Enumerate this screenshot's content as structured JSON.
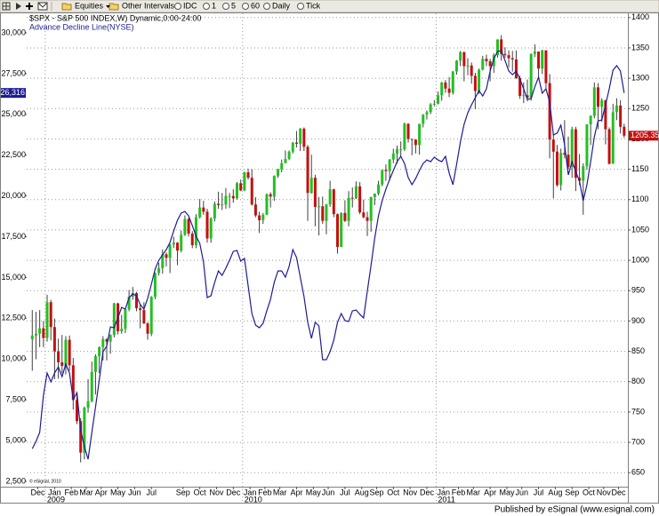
{
  "chart_data": {
    "type": "candlestick",
    "toolbar": {
      "menus": [
        "Equities",
        "Other Intervals"
      ],
      "buttons": [
        "IDC",
        "1",
        "5",
        "60",
        "Daily",
        "Tick"
      ]
    },
    "footer": "Published by eSignal (www.esignal.com)",
    "watermark": "© eSignal, 2010",
    "grid": true,
    "xlim": [
      -1.5,
      160
    ],
    "x": [
      0,
      1,
      2,
      3,
      4,
      5,
      6,
      7,
      8,
      9,
      10,
      11,
      12,
      13,
      14,
      15,
      16,
      17,
      18,
      19,
      20,
      21,
      22,
      23,
      24,
      25,
      26,
      27,
      28,
      29,
      30,
      31,
      32,
      33,
      34,
      35,
      36,
      37,
      38,
      39,
      40,
      41,
      42,
      43,
      44,
      45,
      46,
      47,
      48,
      49,
      50,
      51,
      52,
      53,
      54,
      55,
      56,
      57,
      58,
      59,
      60,
      61,
      62,
      63,
      64,
      65,
      66,
      67,
      68,
      69,
      70,
      71,
      72,
      73,
      74,
      75,
      76,
      77,
      78,
      79,
      80,
      81,
      82,
      83,
      84,
      85,
      86,
      87,
      88,
      89,
      90,
      91,
      92,
      93,
      94,
      95,
      96,
      97,
      98,
      99,
      100,
      101,
      102,
      103,
      104,
      105,
      106,
      107,
      108,
      109,
      110,
      111,
      112,
      113,
      114,
      115,
      116,
      117,
      118,
      119,
      120,
      121,
      122,
      123,
      124,
      125,
      126,
      127,
      128,
      129,
      130,
      131,
      132,
      133,
      134,
      135,
      136,
      137,
      138,
      139,
      140,
      141,
      142,
      143,
      144,
      145,
      146,
      147,
      148,
      149,
      150,
      151,
      152,
      153,
      154,
      155,
      156,
      157,
      158,
      159
    ],
    "xticks": [
      {
        "value": 1.5,
        "label": "Dec"
      },
      {
        "value": 6,
        "label": "Jan"
      },
      {
        "value": 10.5,
        "label": "Feb"
      },
      {
        "value": 14.5,
        "label": "Mar"
      },
      {
        "value": 18.5,
        "label": "Apr"
      },
      {
        "value": 23,
        "label": "May"
      },
      {
        "value": 27.5,
        "label": "Jun"
      },
      {
        "value": 32,
        "label": "Jul"
      },
      {
        "value": 40.5,
        "label": "Sep"
      },
      {
        "value": 45,
        "label": "Oct"
      },
      {
        "value": 49.5,
        "label": "Nov"
      },
      {
        "value": 54,
        "label": "Dec"
      },
      {
        "value": 58.5,
        "label": "Jan"
      },
      {
        "value": 62.5,
        "label": "Feb"
      },
      {
        "value": 66.5,
        "label": "Mar"
      },
      {
        "value": 71,
        "label": "Apr"
      },
      {
        "value": 75.5,
        "label": "May"
      },
      {
        "value": 79.5,
        "label": "Jun"
      },
      {
        "value": 84,
        "label": "Jul"
      },
      {
        "value": 88.5,
        "label": "Aug"
      },
      {
        "value": 92.5,
        "label": "Sep"
      },
      {
        "value": 97,
        "label": "Oct"
      },
      {
        "value": 101.5,
        "label": "Nov"
      },
      {
        "value": 106,
        "label": "Dec"
      },
      {
        "value": 110.5,
        "label": "Jan"
      },
      {
        "value": 114.5,
        "label": "Feb"
      },
      {
        "value": 118.5,
        "label": "Mar"
      },
      {
        "value": 123,
        "label": "Apr"
      },
      {
        "value": 127.5,
        "label": "May"
      },
      {
        "value": 131.5,
        "label": "Jun"
      },
      {
        "value": 136,
        "label": "Jul"
      },
      {
        "value": 140.5,
        "label": "Aug"
      },
      {
        "value": 145,
        "label": "Sep"
      },
      {
        "value": 149.5,
        "label": "Oct"
      },
      {
        "value": 153.5,
        "label": "Nov"
      },
      {
        "value": 157.5,
        "label": "Dec"
      }
    ],
    "year_ticks": [
      {
        "value": 3.5,
        "label": "2009"
      },
      {
        "value": 56.5,
        "label": "2010"
      },
      {
        "value": 108.5,
        "label": "2011"
      }
    ],
    "ylim": [
      2064,
      31198
    ],
    "yticks": [
      {
        "value": 2500,
        "label": "2,500"
      },
      {
        "value": 5000,
        "label": "5,000"
      },
      {
        "value": 7500,
        "label": "7,500"
      },
      {
        "value": 10000,
        "label": "10,000"
      },
      {
        "value": 12500,
        "label": "12,500"
      },
      {
        "value": 15000,
        "label": "15,000"
      },
      {
        "value": 17500,
        "label": "17,500"
      },
      {
        "value": 20000,
        "label": "20,000"
      },
      {
        "value": 22500,
        "label": "22,500"
      },
      {
        "value": 25000,
        "label": "25,000"
      },
      {
        "value": 27500,
        "label": "27,500"
      },
      {
        "value": 30000,
        "label": "30,000"
      }
    ],
    "y2lim": [
      624,
      1407
    ],
    "y2ticks": [
      650,
      700,
      750,
      800,
      850,
      900,
      950,
      1000,
      1050,
      1100,
      1150,
      1200,
      1250,
      1300,
      1350,
      1400
    ],
    "series": [
      {
        "name": "$SPX - S&P 500 INDEX,W) Dynamic,0:00-24:00",
        "type": "candlestick",
        "axis": "y2",
        "up_color": "#22c022",
        "down_color": "#c41010",
        "wick_color": "#404040",
        "current_label": "1205.35",
        "open": [
          870,
          876,
          879,
          888,
          872,
          931,
          890,
          850,
          832,
          826,
          869,
          827,
          770,
          735,
          683,
          757,
          768,
          816,
          842,
          857,
          870,
          866,
          877,
          929,
          883,
          887,
          919,
          940,
          946,
          921,
          918,
          896,
          879,
          940,
          979,
          987,
          1010,
          1004,
          1026,
          1029,
          1016,
          1042,
          1068,
          1044,
          1025,
          1071,
          1087,
          1080,
          1036,
          1069,
          1093,
          1091,
          1092,
          1106,
          1106,
          1102,
          1127,
          1115,
          1145,
          1136,
          1092,
          1074,
          1066,
          1075,
          1109,
          1105,
          1139,
          1150,
          1160,
          1167,
          1179,
          1194,
          1192,
          1217,
          1187,
          1111,
          1136,
          1088,
          1089,
          1065,
          1092,
          1117,
          1076,
          1022,
          1078,
          1065,
          1103,
          1102,
          1122,
          1079,
          1071,
          1065,
          1104,
          1110,
          1125,
          1149,
          1147,
          1166,
          1176,
          1183,
          1183,
          1225,
          1200,
          1199,
          1190,
          1225,
          1240,
          1244,
          1257,
          1258,
          1272,
          1293,
          1283,
          1276,
          1311,
          1329,
          1343,
          1320,
          1321,
          1304,
          1279,
          1314,
          1332,
          1328,
          1320,
          1338,
          1364,
          1340,
          1338,
          1333,
          1331,
          1300,
          1271,
          1272,
          1268,
          1340,
          1344,
          1316,
          1346,
          1292,
          1199,
          1179,
          1124,
          1177,
          1174,
          1154,
          1216,
          1136,
          1131,
          1155,
          1224,
          1238,
          1285,
          1253,
          1264,
          1216,
          1159,
          1244,
          1255,
          1220
        ],
        "high": [
          918,
          915,
          918,
          900,
          943,
          935,
          904,
          871,
          877,
          875,
          876,
          839,
          780,
          740,
          759,
          804,
          833,
          845,
          858,
          875,
          872,
          878,
          930,
          930,
          910,
          920,
          951,
          956,
          948,
          928,
          931,
          898,
          941,
          980,
          996,
          1018,
          1013,
          1027,
          1039,
          1030,
          1049,
          1074,
          1070,
          1048,
          1076,
          1101,
          1098,
          1085,
          1071,
          1097,
          1113,
          1111,
          1119,
          1111,
          1117,
          1129,
          1133,
          1146,
          1151,
          1150,
          1104,
          1080,
          1078,
          1110,
          1112,
          1140,
          1151,
          1166,
          1181,
          1181,
          1195,
          1213,
          1218,
          1219,
          1190,
          1174,
          1141,
          1104,
          1105,
          1093,
          1131,
          1118,
          1077,
          1079,
          1099,
          1114,
          1120,
          1130,
          1129,
          1100,
          1080,
          1105,
          1110,
          1131,
          1149,
          1158,
          1167,
          1184,
          1189,
          1196,
          1227,
          1226,
          1200,
          1199,
          1225,
          1241,
          1247,
          1259,
          1264,
          1278,
          1294,
          1297,
          1302,
          1312,
          1330,
          1345,
          1344,
          1333,
          1326,
          1309,
          1316,
          1337,
          1339,
          1332,
          1341,
          1364,
          1371,
          1351,
          1346,
          1345,
          1346,
          1304,
          1293,
          1298,
          1341,
          1356,
          1344,
          1347,
          1346,
          1307,
          1209,
          1190,
          1184,
          1231,
          1204,
          1220,
          1220,
          1175,
          1160,
          1224,
          1239,
          1293,
          1292,
          1267,
          1264,
          1219,
          1258,
          1267,
          1264,
          1225
        ],
        "low": [
          818,
          837,
          857,
          857,
          866,
          868,
          804,
          805,
          814,
          812,
          818,
          754,
          730,
          667,
          672,
          749,
          766,
          779,
          814,
          835,
          835,
          846,
          873,
          878,
          879,
          880,
          916,
          935,
          916,
          888,
          895,
          869,
          875,
          936,
          975,
          978,
          990,
          979,
          1020,
          992,
          1013,
          1040,
          1039,
          1020,
          1020,
          1069,
          1075,
          1029,
          1029,
          1064,
          1085,
          1083,
          1085,
          1086,
          1095,
          1100,
          1114,
          1114,
          1133,
          1090,
          1071,
          1045,
          1060,
          1075,
          1087,
          1098,
          1136,
          1145,
          1160,
          1165,
          1176,
          1186,
          1180,
          1180,
          1065,
          1110,
          1056,
          1041,
          1060,
          1043,
          1088,
          1071,
          1011,
          1022,
          1063,
          1056,
          1087,
          1101,
          1076,
          1069,
          1040,
          1047,
          1091,
          1107,
          1122,
          1131,
          1131,
          1160,
          1159,
          1171,
          1180,
          1194,
          1173,
          1176,
          1174,
          1219,
          1232,
          1241,
          1254,
          1257,
          1263,
          1276,
          1269,
          1273,
          1306,
          1320,
          1295,
          1305,
          1291,
          1249,
          1274,
          1313,
          1320,
          1295,
          1309,
          1334,
          1329,
          1334,
          1318,
          1311,
          1299,
          1266,
          1259,
          1262,
          1263,
          1335,
          1301,
          1307,
          1282,
          1168,
          1102,
          1121,
          1115,
          1168,
          1150,
          1136,
          1114,
          1124,
          1075,
          1149,
          1190,
          1234,
          1216,
          1228,
          1191,
          1158,
          1159,
          1231,
          1209,
          1202
        ],
        "close": [
          876,
          879,
          888,
          872,
          931,
          890,
          850,
          832,
          826,
          869,
          827,
          770,
          735,
          683,
          757,
          768,
          816,
          842,
          857,
          870,
          866,
          877,
          929,
          883,
          887,
          919,
          940,
          946,
          921,
          918,
          896,
          879,
          940,
          979,
          987,
          1010,
          1004,
          1026,
          1029,
          1016,
          1042,
          1068,
          1044,
          1025,
          1071,
          1087,
          1080,
          1036,
          1069,
          1093,
          1091,
          1092,
          1106,
          1106,
          1102,
          1127,
          1115,
          1145,
          1136,
          1092,
          1074,
          1066,
          1075,
          1109,
          1105,
          1139,
          1150,
          1160,
          1167,
          1179,
          1194,
          1192,
          1217,
          1187,
          1111,
          1136,
          1088,
          1089,
          1065,
          1092,
          1117,
          1076,
          1022,
          1078,
          1065,
          1103,
          1102,
          1122,
          1079,
          1071,
          1065,
          1104,
          1110,
          1125,
          1149,
          1147,
          1166,
          1176,
          1183,
          1183,
          1225,
          1200,
          1199,
          1190,
          1225,
          1240,
          1244,
          1257,
          1258,
          1272,
          1293,
          1283,
          1276,
          1311,
          1329,
          1343,
          1320,
          1321,
          1304,
          1279,
          1314,
          1332,
          1328,
          1320,
          1338,
          1364,
          1340,
          1338,
          1333,
          1331,
          1300,
          1271,
          1272,
          1268,
          1340,
          1344,
          1316,
          1346,
          1292,
          1199,
          1179,
          1124,
          1177,
          1174,
          1154,
          1216,
          1136,
          1131,
          1155,
          1224,
          1238,
          1285,
          1253,
          1264,
          1216,
          1159,
          1244,
          1255,
          1220,
          1205.35
        ]
      },
      {
        "name": "Advance Decline Line(NYSE)",
        "type": "line",
        "color": "#1c1c96",
        "current_label": "26,316",
        "values": [
          4500,
          4950,
          5500,
          7780,
          9140,
          8600,
          9140,
          9520,
          8920,
          9690,
          9140,
          7510,
          7940,
          5660,
          4620,
          3860,
          5490,
          7070,
          8710,
          10450,
          10780,
          11970,
          11920,
          12520,
          13170,
          13060,
          13770,
          13990,
          13880,
          13340,
          13060,
          13720,
          14590,
          15510,
          16060,
          16390,
          16710,
          17150,
          17860,
          18510,
          18950,
          19050,
          18780,
          18180,
          17530,
          17090,
          15950,
          13770,
          13880,
          14700,
          15400,
          15130,
          15570,
          16060,
          16600,
          16660,
          16000,
          16170,
          14480,
          12790,
          12080,
          11920,
          12190,
          12950,
          13660,
          14700,
          15400,
          15400,
          15020,
          15680,
          16710,
          16220,
          15020,
          13830,
          12250,
          11270,
          12250,
          12030,
          9960,
          9960,
          10450,
          11160,
          12250,
          12790,
          12360,
          12300,
          12950,
          13010,
          12740,
          12520,
          14150,
          15730,
          17420,
          18780,
          19710,
          20420,
          21010,
          21560,
          22100,
          22430,
          21990,
          21120,
          20690,
          21070,
          21560,
          21990,
          22210,
          22100,
          22380,
          22210,
          22100,
          22430,
          21400,
          20690,
          21940,
          23300,
          24390,
          25100,
          25590,
          26020,
          26460,
          26130,
          26570,
          27660,
          28420,
          28860,
          28910,
          28310,
          27660,
          27440,
          27660,
          27170,
          26570,
          25920,
          25970,
          26680,
          27280,
          26300,
          26570,
          25750,
          23740,
          23850,
          24340,
          23140,
          21290,
          22100,
          21500,
          20900,
          19710,
          20690,
          22100,
          23630,
          24610,
          24660,
          25590,
          26570,
          27710,
          27990,
          27660,
          26316
        ]
      }
    ]
  }
}
